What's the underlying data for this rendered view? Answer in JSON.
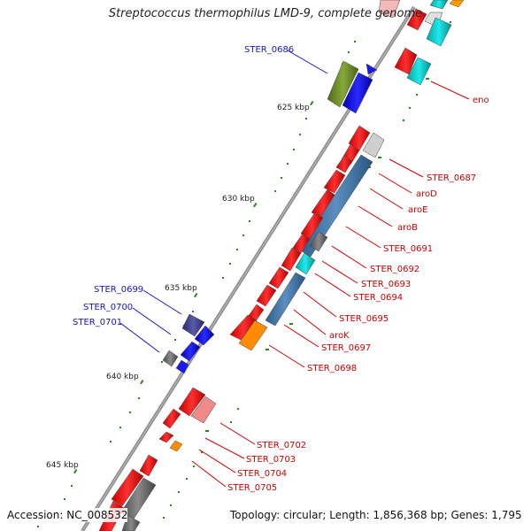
{
  "title": "Streptococcus thermophilus LMD-9, complete genome",
  "footer": {
    "accession": "Accession: NC_008532",
    "topology": "Topology: circular; Length: 1,856,368 bp; Genes: 1,795"
  },
  "colors": {
    "backbone": "#8c8c8c",
    "label_blue": "#1515c8",
    "label_red": "#cc0000",
    "tick": "#1f8a1f"
  },
  "ticks": [
    "625 kbp",
    "630 kbp",
    "635 kbp",
    "640 kbp",
    "645 kbp"
  ],
  "labels_left": [
    "STER_0686",
    "STER_0699",
    "STER_0700",
    "STER_0701"
  ],
  "labels_right": [
    "eno",
    "STER_0687",
    "aroD",
    "aroE",
    "aroB",
    "STER_0691",
    "STER_0692",
    "STER_0693",
    "STER_0694",
    "STER_0695",
    "aroK",
    "STER_0697",
    "STER_0698",
    "STER_0702",
    "STER_0703",
    "STER_0704",
    "STER_0705"
  ]
}
